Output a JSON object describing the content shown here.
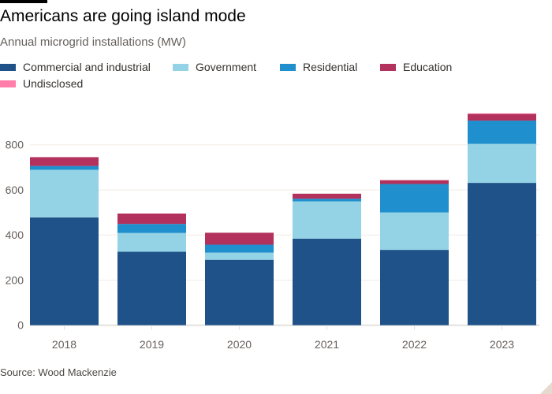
{
  "title": "Americans are going island mode",
  "subtitle": "Annual microgrid installations (MW)",
  "source": "Source: Wood Mackenzie",
  "legend": [
    {
      "label": "Commercial and industrial",
      "color": "#1f5289"
    },
    {
      "label": "Government",
      "color": "#94d3e5"
    },
    {
      "label": "Residential",
      "color": "#1f8fcd"
    },
    {
      "label": "Education",
      "color": "#b3325d"
    },
    {
      "label": "Undisclosed",
      "color": "#ff7faa"
    }
  ],
  "chart_data": {
    "type": "bar",
    "stacked": true,
    "title": "Americans are going island mode",
    "subtitle": "Annual microgrid installations (MW)",
    "xlabel": "",
    "ylabel": "",
    "categories": [
      "2018",
      "2019",
      "2020",
      "2021",
      "2022",
      "2023"
    ],
    "series": [
      {
        "name": "Commercial and industrial",
        "color": "#1f5289",
        "values": [
          478,
          326,
          290,
          384,
          334,
          631
        ]
      },
      {
        "name": "Government",
        "color": "#94d3e5",
        "values": [
          211,
          83,
          32,
          165,
          166,
          173
        ]
      },
      {
        "name": "Residential",
        "color": "#1f8fcd",
        "values": [
          17,
          40,
          35,
          12,
          126,
          103
        ]
      },
      {
        "name": "Education",
        "color": "#b3325d",
        "values": [
          39,
          46,
          53,
          22,
          17,
          30
        ]
      },
      {
        "name": "Undisclosed",
        "color": "#ff7faa",
        "values": [
          0,
          0,
          0,
          0,
          0,
          2
        ]
      }
    ],
    "ylim": [
      0,
      950
    ],
    "yticks": [
      0,
      200,
      400,
      600,
      800
    ],
    "grid": true,
    "legend_position": "top-left",
    "source": "Source: Wood Mackenzie"
  }
}
